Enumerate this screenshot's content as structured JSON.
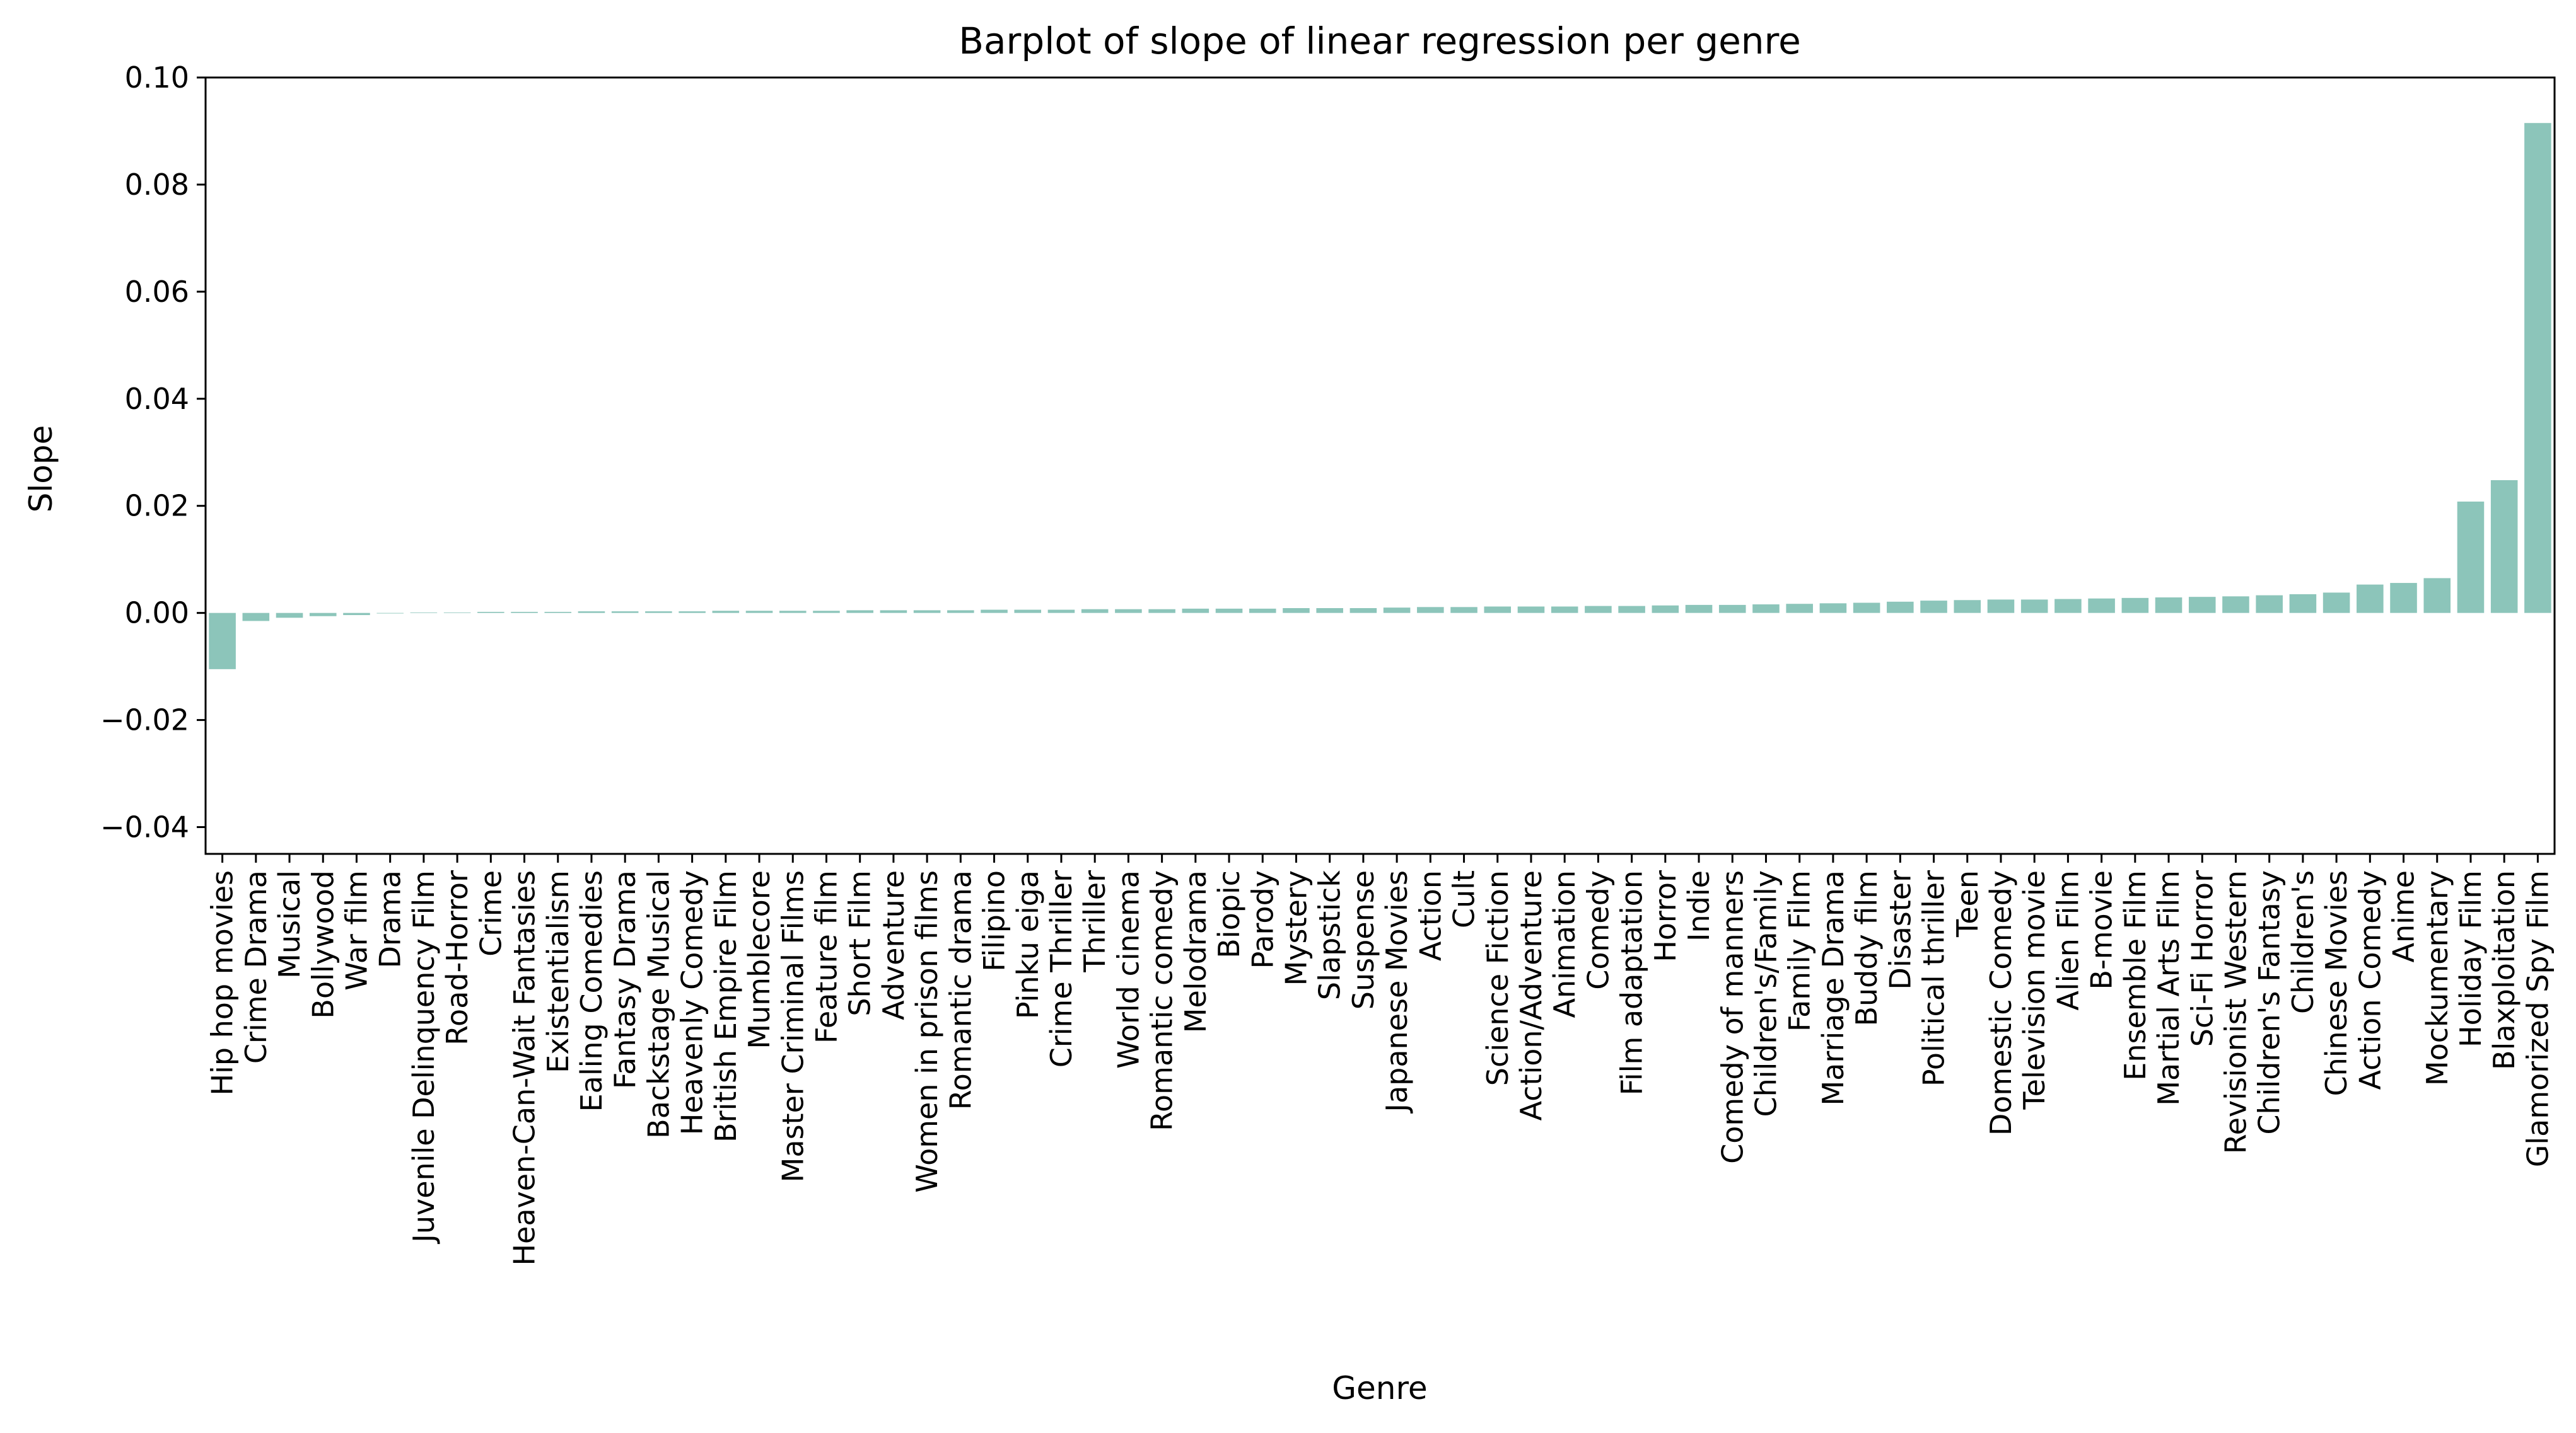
{
  "chart_data": {
    "type": "bar",
    "title": "Barplot of slope of linear regression per genre",
    "xlabel": "Genre",
    "ylabel": "Slope",
    "ylim": [
      -0.045,
      0.1
    ],
    "yticks": [
      "−0.04",
      "−0.02",
      "0.00",
      "0.02",
      "0.04",
      "0.06",
      "0.08",
      "0.10"
    ],
    "ytick_values": [
      -0.04,
      -0.02,
      0.0,
      0.02,
      0.04,
      0.06,
      0.08,
      0.1
    ],
    "grid": false,
    "legend": "none",
    "bar_color": "#8cc5ba",
    "categories": [
      "Hip hop movies",
      "Crime Drama",
      "Musical",
      "Bollywood",
      "War film",
      "Drama",
      "Juvenile Delinquency Film",
      "Road-Horror",
      "Crime",
      "Heaven-Can-Wait Fantasies",
      "Existentialism",
      "Ealing Comedies",
      "Fantasy Drama",
      "Backstage Musical",
      "Heavenly Comedy",
      "British Empire Film",
      "Mumblecore",
      "Master Criminal Films",
      "Feature film",
      "Short Film",
      "Adventure",
      "Women in prison films",
      "Romantic drama",
      "Filipino",
      "Pinku eiga",
      "Crime Thriller",
      "Thriller",
      "World cinema",
      "Romantic comedy",
      "Melodrama",
      "Biopic",
      "Parody",
      "Mystery",
      "Slapstick",
      "Suspense",
      "Japanese Movies",
      "Action",
      "Cult",
      "Science Fiction",
      "Action/Adventure",
      "Animation",
      "Comedy",
      "Film adaptation",
      "Horror",
      "Indie",
      "Comedy of manners",
      "Children's/Family",
      "Family Film",
      "Marriage Drama",
      "Buddy film",
      "Disaster",
      "Political thriller",
      "Teen",
      "Domestic Comedy",
      "Television movie",
      "Alien Film",
      "B-movie",
      "Ensemble Film",
      "Martial Arts Film",
      "Sci-Fi Horror",
      "Revisionist Western",
      "Children's Fantasy",
      "Children's",
      "Chinese Movies",
      "Action Comedy",
      "Anime",
      "Mockumentary",
      "Holiday Film",
      "Blaxploitation",
      "Glamorized Spy Film"
    ],
    "values": [
      -0.0105,
      -0.0015,
      -0.0009,
      -0.0006,
      -0.0004,
      -0.0001,
      0.0001,
      0.0001,
      0.0002,
      0.0002,
      0.0002,
      0.0003,
      0.0003,
      0.0003,
      0.0003,
      0.0004,
      0.0004,
      0.0004,
      0.0004,
      0.0005,
      0.0005,
      0.0005,
      0.0005,
      0.0006,
      0.0006,
      0.0006,
      0.0007,
      0.0007,
      0.0007,
      0.0008,
      0.0008,
      0.0008,
      0.0009,
      0.0009,
      0.0009,
      0.001,
      0.0011,
      0.0011,
      0.0012,
      0.0012,
      0.0012,
      0.0013,
      0.0013,
      0.0014,
      0.0015,
      0.0015,
      0.0016,
      0.0017,
      0.0018,
      0.0019,
      0.0021,
      0.0023,
      0.0024,
      0.0025,
      0.0025,
      0.0026,
      0.0027,
      0.0028,
      0.0029,
      0.003,
      0.0031,
      0.0033,
      0.0035,
      0.0038,
      0.0053,
      0.0056,
      0.0065,
      0.0208,
      0.0248,
      0.0915
    ]
  }
}
